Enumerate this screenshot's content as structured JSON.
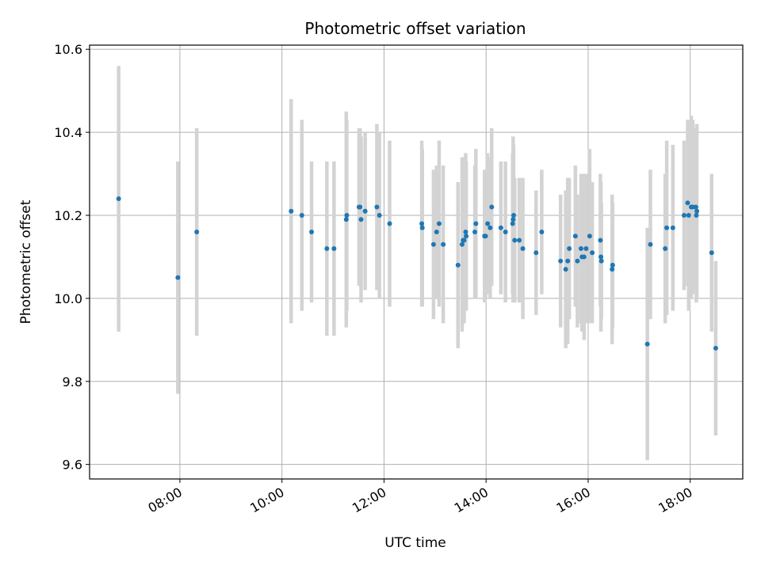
{
  "chart_data": {
    "type": "scatter",
    "title": "Photometric offset variation",
    "xlabel": "UTC time",
    "ylabel": "Photometric offset",
    "x_unit": "hours UTC",
    "xlim": [
      6.23,
      19.03
    ],
    "ylim": [
      9.565,
      10.61
    ],
    "x_ticks": [
      8,
      10,
      12,
      14,
      16,
      18
    ],
    "x_tick_labels": [
      "08:00",
      "10:00",
      "12:00",
      "14:00",
      "16:00",
      "18:00"
    ],
    "y_ticks": [
      9.6,
      9.8,
      10.0,
      10.2,
      10.4,
      10.6
    ],
    "y_tick_labels": [
      "9.6",
      "9.8",
      "10.0",
      "10.2",
      "10.4",
      "10.6"
    ],
    "grid": true,
    "marker_color": "#1f77b4",
    "errorbar_color": "#d3d3d3",
    "series": [
      {
        "x": [
          6.8,
          7.96,
          8.33,
          10.18,
          10.39,
          10.58,
          10.88,
          11.02,
          11.26,
          11.27,
          11.51,
          11.53,
          11.55,
          11.63,
          11.86,
          11.91,
          12.11,
          12.74,
          12.75,
          12.97,
          13.03,
          13.08,
          13.16,
          13.45,
          13.53,
          13.55,
          13.57,
          13.6,
          13.61,
          13.78,
          13.8,
          13.97,
          13.99,
          14.03,
          14.08,
          14.11,
          14.29,
          14.38,
          14.52,
          14.53,
          14.54,
          14.56,
          14.65,
          14.72,
          14.98,
          15.09,
          15.46,
          15.56,
          15.6,
          15.63,
          15.75,
          15.79,
          15.86,
          15.88,
          15.92,
          15.96,
          16.03,
          16.08,
          16.24,
          16.25,
          16.26,
          16.47,
          16.48,
          17.16,
          17.22,
          17.51,
          17.54,
          17.66,
          17.88,
          17.95,
          17.97,
          18.02,
          18.05,
          18.11,
          18.12,
          18.13,
          18.42,
          18.5
        ],
        "y": [
          10.24,
          10.05,
          10.16,
          10.21,
          10.2,
          10.16,
          10.12,
          10.12,
          10.19,
          10.2,
          10.22,
          10.22,
          10.19,
          10.21,
          10.22,
          10.2,
          10.18,
          10.18,
          10.17,
          10.13,
          10.16,
          10.18,
          10.13,
          10.08,
          10.13,
          10.14,
          10.14,
          10.16,
          10.15,
          10.16,
          10.18,
          10.15,
          10.15,
          10.18,
          10.17,
          10.22,
          10.17,
          10.16,
          10.18,
          10.19,
          10.2,
          10.14,
          10.14,
          10.12,
          10.11,
          10.16,
          10.09,
          10.07,
          10.09,
          10.12,
          10.15,
          10.09,
          10.12,
          10.1,
          10.1,
          10.12,
          10.15,
          10.11,
          10.14,
          10.1,
          10.09,
          10.07,
          10.08,
          9.89,
          10.13,
          10.12,
          10.17,
          10.17,
          10.2,
          10.23,
          10.2,
          10.22,
          10.22,
          10.22,
          10.2,
          10.21,
          10.11,
          9.88
        ],
        "yerr": [
          0.32,
          0.28,
          0.25,
          0.27,
          0.23,
          0.17,
          0.21,
          0.21,
          0.26,
          0.23,
          0.19,
          0.19,
          0.2,
          0.19,
          0.2,
          0.2,
          0.2,
          0.2,
          0.19,
          0.18,
          0.16,
          0.2,
          0.19,
          0.2,
          0.21,
          0.2,
          0.2,
          0.19,
          0.18,
          0.16,
          0.18,
          0.16,
          0.15,
          0.17,
          0.17,
          0.19,
          0.16,
          0.17,
          0.17,
          0.2,
          0.17,
          0.15,
          0.15,
          0.17,
          0.15,
          0.15,
          0.16,
          0.19,
          0.2,
          0.17,
          0.17,
          0.16,
          0.18,
          0.18,
          0.2,
          0.18,
          0.21,
          0.17,
          0.16,
          0.18,
          0.14,
          0.18,
          0.15,
          0.28,
          0.18,
          0.18,
          0.21,
          0.2,
          0.18,
          0.2,
          0.23,
          0.22,
          0.21,
          0.19,
          0.21,
          0.21,
          0.19,
          0.21
        ]
      }
    ]
  }
}
